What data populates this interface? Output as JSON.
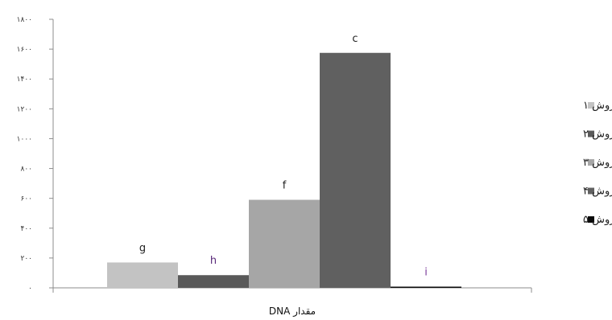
{
  "chart_data": {
    "type": "bar",
    "title": "",
    "xlabel": "مقدار DNA",
    "ylabel": "",
    "ylim": [
      0,
      1800
    ],
    "yticks": [
      0,
      200,
      400,
      600,
      800,
      1000,
      1200,
      1400,
      1600,
      1800
    ],
    "ytick_labels": [
      "۰",
      "۲۰۰",
      "۴۰۰",
      "۶۰۰",
      "۸۰۰",
      "۱۰۰۰",
      "۱۲۰۰",
      "۱۴۰۰",
      "۱۶۰۰",
      "۱۸۰۰"
    ],
    "categories": [
      "مقدار DNA"
    ],
    "grid": false,
    "legend_position": "right",
    "series": [
      {
        "name": "روش ۱",
        "values": [
          170
        ],
        "label": "g",
        "color": "#c3c3c3",
        "label_color": "#222222"
      },
      {
        "name": "روش ۲",
        "values": [
          85
        ],
        "label": "h",
        "color": "#595959",
        "label_color": "#5a2a7a"
      },
      {
        "name": "روش ۳",
        "values": [
          590
        ],
        "label": "f",
        "color": "#a6a6a6",
        "label_color": "#222222"
      },
      {
        "name": "روش ۴",
        "values": [
          1575
        ],
        "label": "c",
        "color": "#606060",
        "label_color": "#222222"
      },
      {
        "name": "روش ۵",
        "values": [
          8
        ],
        "label": "i",
        "color": "#0a0a0a",
        "label_color": "#7a3a9a"
      }
    ]
  }
}
